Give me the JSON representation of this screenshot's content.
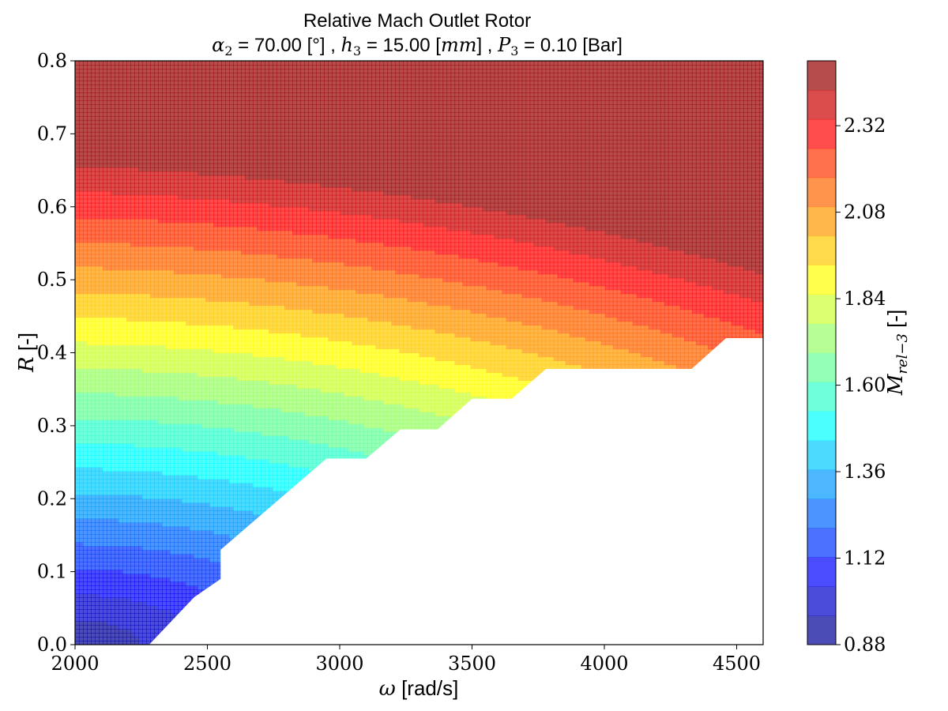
{
  "chart_data": {
    "type": "heatmap",
    "subtype": "filled-contour",
    "title": "Relative Mach Outlet Rotor",
    "subtitle": {
      "alpha_label": "α",
      "alpha_sub": "2",
      "alpha_rest": " = 70.00 [°] , ",
      "h_label": "h",
      "h_sub": "3",
      "h_rest": " = 15.00 [",
      "h_unit": "mm",
      "h_close": "] , ",
      "p_label": "P",
      "p_sub": "3",
      "p_rest": " = 0.10 [Bar]"
    },
    "xlabel": {
      "symbol": "ω",
      "rest": " [rad/s]"
    },
    "ylabel": {
      "symbol": "R",
      "rest": " [-]"
    },
    "colorbar_label": {
      "symbol": "M",
      "sub": "rel−3",
      "rest": " [-]"
    },
    "xlim": [
      2000,
      4600
    ],
    "ylim": [
      0.0,
      0.8
    ],
    "x_ticks": [
      "2000",
      "2500",
      "3000",
      "3500",
      "4000",
      "4500"
    ],
    "y_ticks": [
      "0.0",
      "0.1",
      "0.2",
      "0.3",
      "0.4",
      "0.5",
      "0.6",
      "0.7",
      "0.8"
    ],
    "colorbar_range": [
      0.88,
      2.5
    ],
    "colorbar_levels": 20,
    "colorbar_ticks": [
      "0.88",
      "1.12",
      "1.36",
      "1.60",
      "1.84",
      "2.08",
      "2.32"
    ],
    "colormap": "jet",
    "alpha": 0.7,
    "grid": false,
    "field": {
      "description": "M_rel-3 increases with both omega and R along arcs",
      "min_value": 0.88,
      "max_value": 2.5
    },
    "invalid_region_boundary": [
      [
        2000,
        0.0
      ],
      [
        2280,
        0.0
      ],
      [
        2450,
        0.065
      ],
      [
        2550,
        0.09
      ],
      [
        2550,
        0.13
      ],
      [
        2950,
        0.255
      ],
      [
        3100,
        0.255
      ],
      [
        3230,
        0.295
      ],
      [
        3370,
        0.295
      ],
      [
        3500,
        0.337
      ],
      [
        3650,
        0.337
      ],
      [
        3780,
        0.378
      ],
      [
        4330,
        0.378
      ],
      [
        4460,
        0.42
      ],
      [
        4600,
        0.42
      ]
    ]
  }
}
